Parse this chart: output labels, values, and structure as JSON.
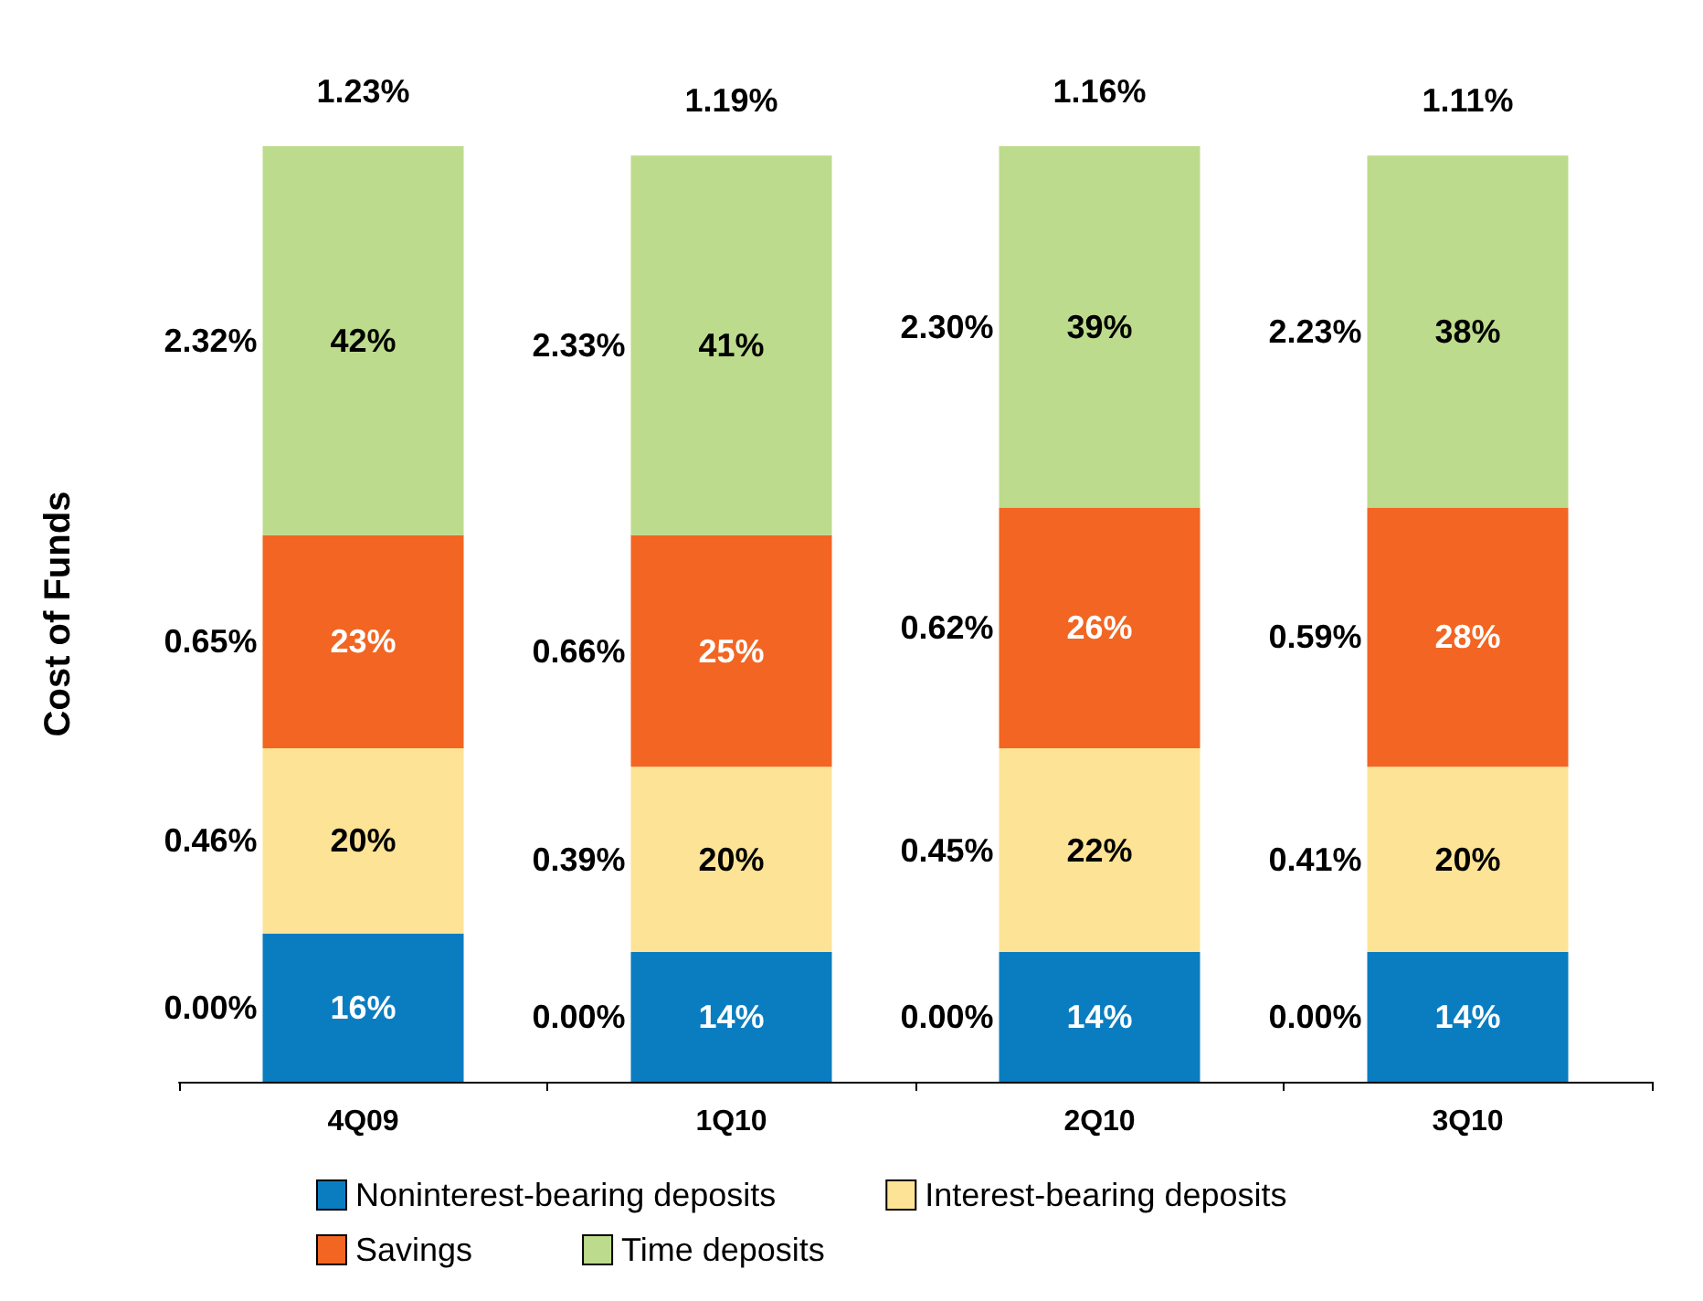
{
  "chart_data": {
    "type": "bar",
    "stacked": true,
    "ylabel": "Cost of Funds",
    "categories": [
      "4Q09",
      "1Q10",
      "2Q10",
      "3Q10"
    ],
    "series": [
      {
        "name": "Noninterest-bearing deposits",
        "color": "#0a7dc1",
        "values": [
          16,
          14,
          14,
          14
        ],
        "value_labels": [
          "16%",
          "14%",
          "14%",
          "14%"
        ]
      },
      {
        "name": "Interest-bearing deposits",
        "color": "#fde395",
        "values": [
          20,
          20,
          22,
          20
        ],
        "value_labels": [
          "20%",
          "20%",
          "22%",
          "20%"
        ]
      },
      {
        "name": "Savings",
        "color": "#f26522",
        "values": [
          23,
          25,
          26,
          28
        ],
        "value_labels": [
          "23%",
          "25%",
          "26%",
          "28%"
        ]
      },
      {
        "name": "Time deposits",
        "color": "#bddb8c",
        "values": [
          42,
          41,
          39,
          38
        ],
        "value_labels": [
          "42%",
          "41%",
          "39%",
          "38%"
        ]
      }
    ],
    "tick_labels": "x",
    "grid": false,
    "legend": "bottom",
    "annotations": [
      "0.00%",
      "0.46%",
      "0.65%",
      "2.32%",
      "1.23%",
      "0.00%",
      "0.39%",
      "0.66%",
      "2.33%",
      "1.19%",
      "0.00%",
      "0.45%",
      "0.62%",
      "2.30%",
      "1.16%",
      "0.00%",
      "0.41%",
      "0.59%",
      "2.23%",
      "1.11%"
    ]
  }
}
